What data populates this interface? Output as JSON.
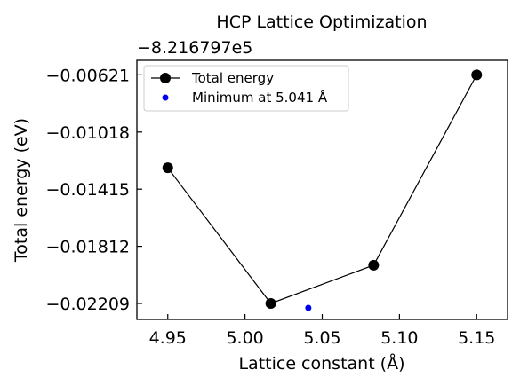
{
  "chart_data": {
    "type": "line",
    "title": "HCP Lattice Optimization",
    "offset_text": "−8.216797e5",
    "xlabel": "Lattice constant (Å)",
    "ylabel": "Total energy (eV)",
    "xlim": [
      4.93,
      5.17
    ],
    "ylim": [
      -0.0232,
      -0.0052
    ],
    "xticks": [
      4.95,
      5.0,
      5.05,
      5.1,
      5.15
    ],
    "xtick_labels": [
      "4.95",
      "5.00",
      "5.05",
      "5.10",
      "5.15"
    ],
    "yticks": [
      -0.00621,
      -0.01018,
      -0.01415,
      -0.01812,
      -0.02209
    ],
    "ytick_labels": [
      "−0.00621",
      "−0.01018",
      "−0.01415",
      "−0.01812",
      "−0.02209"
    ],
    "legend_position": "upper-left",
    "grid": false,
    "series": [
      {
        "name": "Total energy",
        "color": "#000000",
        "marker": "circle",
        "x": [
          4.95,
          5.0167,
          5.0833,
          5.15
        ],
        "y": [
          -0.01267,
          -0.02209,
          -0.01943,
          -0.00621
        ]
      },
      {
        "name": "Minimum at 5.041 Å",
        "color": "#0000ee",
        "marker": "circle-small",
        "x": [
          5.041
        ],
        "y": [
          -0.0224
        ]
      }
    ]
  }
}
